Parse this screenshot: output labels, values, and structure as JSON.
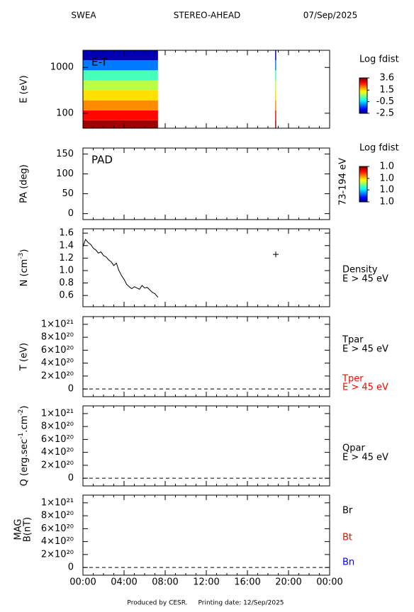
{
  "header": {
    "instrument": "SWEA",
    "spacecraft": "STEREO-AHEAD",
    "date": "07/Sep/2025"
  },
  "footer": {
    "produced": "Produced by CESR.",
    "printing": "Printing date: 12/Sep/2025"
  },
  "x_axis": {
    "xlim": [
      0,
      24
    ],
    "xticks": [
      {
        "value": 0,
        "label": "00:00"
      },
      {
        "value": 4,
        "label": "04:00"
      },
      {
        "value": 8,
        "label": "08:00"
      },
      {
        "value": 12,
        "label": "12:00"
      },
      {
        "value": 16,
        "label": "16:00"
      },
      {
        "value": 20,
        "label": "20:00"
      },
      {
        "value": 24,
        "label": "00:00"
      }
    ]
  },
  "chart_data": [
    {
      "type": "heatmap",
      "ylabel": "E (eV)",
      "annotation": "E-T",
      "log_y": true,
      "ylim": [
        47,
        2371
      ],
      "yticks": [
        100,
        1000
      ],
      "x_bins": [
        0,
        7.3,
        18.7,
        18.8
      ],
      "y_bins": [
        47,
        70,
        115,
        191,
        316,
        523,
        866,
        1433,
        2371
      ],
      "values": [
        [
          3.4,
          null,
          3.4
        ],
        [
          2.8,
          null,
          2.8
        ],
        [
          2.0,
          null,
          2.0
        ],
        [
          1.5,
          null,
          1.5
        ],
        [
          0.9,
          null,
          0.9
        ],
        [
          0.2,
          null,
          0.2
        ],
        [
          -1.0,
          null,
          -1.0
        ],
        [
          -2.2,
          null,
          -2.2
        ]
      ],
      "colorbar": {
        "title": "Log fdist",
        "clim": [
          -2.5,
          3.6
        ],
        "ticks": [
          3.6,
          1.5,
          -0.5,
          -2.5
        ]
      }
    },
    {
      "type": "heatmap",
      "ylabel": "PA (deg)",
      "annotation": "PAD",
      "right_label": "73-194 eV",
      "ylim": [
        -15,
        165
      ],
      "yticks": [
        0,
        50,
        100,
        150
      ],
      "colorbar": {
        "title": "Log fdist",
        "clim": [
          0.96,
          1.04
        ],
        "ticks": [
          {
            "value": 1.04,
            "label": "1.0"
          },
          {
            "value": 1.013,
            "label": "1.0"
          },
          {
            "value": 0.987,
            "label": "1.0"
          },
          {
            "value": 0.96,
            "label": "1.0"
          }
        ]
      }
    },
    {
      "type": "line",
      "ylabel_parts": [
        "N (cm",
        "-3",
        ")"
      ],
      "ylim": [
        0.42,
        1.67
      ],
      "yticks": [
        0.6,
        0.8,
        {
          "value": 1,
          "label": "1.0"
        },
        1.2,
        1.4,
        1.6
      ],
      "series": [
        {
          "color": "#000000",
          "x": [
            0,
            0.25,
            0.5,
            0.75,
            1,
            1.25,
            1.5,
            1.75,
            2,
            2.25,
            2.5,
            2.75,
            3,
            3.25,
            3.5,
            3.75,
            4,
            4.25,
            4.5,
            4.75,
            5,
            5.25,
            5.5,
            5.75,
            6,
            6.25,
            6.5,
            6.75,
            7,
            7.3
          ],
          "values": [
            1.38,
            1.5,
            1.45,
            1.42,
            1.36,
            1.33,
            1.28,
            1.3,
            1.24,
            1.22,
            1.17,
            1.14,
            1.08,
            1.12,
            1.0,
            0.92,
            0.86,
            0.78,
            0.74,
            0.71,
            0.74,
            0.72,
            0.7,
            0.76,
            0.72,
            0.73,
            0.69,
            0.65,
            0.63,
            0.57
          ]
        },
        {
          "color": "#000000",
          "marker": "plus",
          "x": [
            18.76
          ],
          "values": [
            1.26
          ]
        }
      ],
      "side_labels": [
        {
          "text": "Density",
          "color": "#000000"
        },
        {
          "text": "E > 45 eV",
          "color": "#000000"
        }
      ]
    },
    {
      "type": "line",
      "ylabel": "T (eV)",
      "zero_line": true,
      "ylim": [
        -1.2e+20,
        1.12e+21
      ],
      "yticks": [
        0,
        {
          "value": 2e+20,
          "label": "2×10²⁰"
        },
        {
          "value": 4e+20,
          "label": "4×10²⁰"
        },
        {
          "value": 6e+20,
          "label": "6×10²⁰"
        },
        {
          "value": 8e+20,
          "label": "8×10²⁰"
        },
        {
          "value": 1e+21,
          "label": "1×10²¹"
        }
      ],
      "side_labels": [
        {
          "text": "Tpar",
          "color": "#000000"
        },
        {
          "text": "E > 45 eV",
          "color": "#000000"
        },
        {
          "text": "Tper",
          "color": "#ff0000"
        },
        {
          "text": "E > 45 eV",
          "color": "#ff0000"
        }
      ]
    },
    {
      "type": "line",
      "ylabel_parts": [
        "Q (erg.sec",
        "-1",
        ".cm",
        "-2",
        ")"
      ],
      "zero_line": true,
      "ylim": [
        -1.2e+20,
        1.12e+21
      ],
      "yticks": [
        0,
        {
          "value": 2e+20,
          "label": "2×10²⁰"
        },
        {
          "value": 4e+20,
          "label": "4×10²⁰"
        },
        {
          "value": 6e+20,
          "label": "6×10²⁰"
        },
        {
          "value": 8e+20,
          "label": "8×10²⁰"
        },
        {
          "value": 1e+21,
          "label": "1×10²¹"
        }
      ],
      "side_labels": [
        {
          "text": "Qpar",
          "color": "#000000"
        },
        {
          "text": "E > 45 eV",
          "color": "#000000"
        }
      ]
    },
    {
      "type": "line",
      "ylabel_lines": [
        "MAG",
        "B(nT)"
      ],
      "zero_line": true,
      "ylim": [
        -1.2e+20,
        1.12e+21
      ],
      "yticks": [
        0,
        {
          "value": 2e+20,
          "label": "2×10²⁰"
        },
        {
          "value": 4e+20,
          "label": "4×10²⁰"
        },
        {
          "value": 6e+20,
          "label": "6×10²⁰"
        },
        {
          "value": 8e+20,
          "label": "8×10²⁰"
        },
        {
          "value": 1e+21,
          "label": "1×10²¹"
        }
      ],
      "side_labels": [
        {
          "text": "Br",
          "color": "#000000"
        },
        {
          "text": "Bt",
          "color": "#ff0000"
        },
        {
          "text": "Bn",
          "color": "#0000ff"
        }
      ]
    }
  ]
}
